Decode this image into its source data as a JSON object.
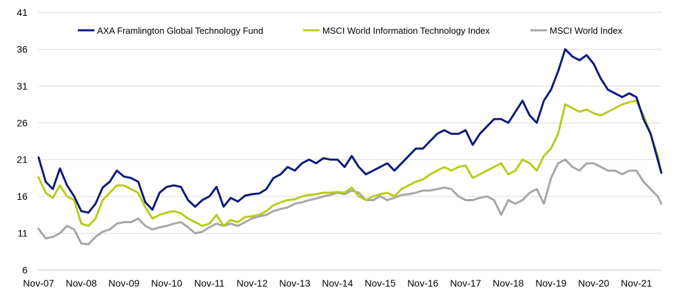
{
  "chart_data": {
    "type": "line",
    "title": "",
    "xlabel": "",
    "ylabel": "",
    "ylim": [
      6,
      41
    ],
    "yticks": [
      6,
      11,
      16,
      21,
      26,
      31,
      36,
      41
    ],
    "xlim": [
      "2007-11",
      "2022-06"
    ],
    "xticks": [
      "Nov-07",
      "Nov-08",
      "Nov-09",
      "Nov-10",
      "Nov-11",
      "Nov-12",
      "Nov-13",
      "Nov-14",
      "Nov-15",
      "Nov-16",
      "Nov-17",
      "Nov-18",
      "Nov-19",
      "Nov-20",
      "Nov-21"
    ],
    "grid": "horizontal",
    "legend_position": "top",
    "series": [
      {
        "name": "AXA Framlington Global Technology Fund",
        "color": "#0d1a7a",
        "points": [
          [
            "2007-11",
            21.3
          ],
          [
            "2008-01",
            18.0
          ],
          [
            "2008-03",
            17.0
          ],
          [
            "2008-05",
            19.8
          ],
          [
            "2008-07",
            17.5
          ],
          [
            "2008-09",
            16.0
          ],
          [
            "2008-11",
            14.0
          ],
          [
            "2009-01",
            13.8
          ],
          [
            "2009-03",
            15.0
          ],
          [
            "2009-05",
            17.2
          ],
          [
            "2009-07",
            18.0
          ],
          [
            "2009-09",
            19.5
          ],
          [
            "2009-11",
            18.7
          ],
          [
            "2010-01",
            18.5
          ],
          [
            "2010-03",
            18.0
          ],
          [
            "2010-05",
            15.2
          ],
          [
            "2010-07",
            14.2
          ],
          [
            "2010-09",
            16.5
          ],
          [
            "2010-11",
            17.3
          ],
          [
            "2011-01",
            17.5
          ],
          [
            "2011-03",
            17.3
          ],
          [
            "2011-05",
            15.5
          ],
          [
            "2011-07",
            14.6
          ],
          [
            "2011-09",
            15.5
          ],
          [
            "2011-11",
            16.0
          ],
          [
            "2012-01",
            17.3
          ],
          [
            "2012-03",
            14.6
          ],
          [
            "2012-05",
            15.8
          ],
          [
            "2012-07",
            15.3
          ],
          [
            "2012-09",
            16.1
          ],
          [
            "2012-11",
            16.3
          ],
          [
            "2013-01",
            16.4
          ],
          [
            "2013-03",
            17.0
          ],
          [
            "2013-05",
            18.5
          ],
          [
            "2013-07",
            19.0
          ],
          [
            "2013-09",
            20.0
          ],
          [
            "2013-11",
            19.5
          ],
          [
            "2014-01",
            20.5
          ],
          [
            "2014-03",
            21.0
          ],
          [
            "2014-05",
            20.5
          ],
          [
            "2014-07",
            21.2
          ],
          [
            "2014-09",
            21.0
          ],
          [
            "2014-11",
            21.0
          ],
          [
            "2015-01",
            20.0
          ],
          [
            "2015-03",
            21.5
          ],
          [
            "2015-05",
            20.0
          ],
          [
            "2015-07",
            19.0
          ],
          [
            "2015-09",
            19.5
          ],
          [
            "2015-11",
            20.0
          ],
          [
            "2016-01",
            20.5
          ],
          [
            "2016-03",
            19.5
          ],
          [
            "2016-05",
            20.5
          ],
          [
            "2016-07",
            21.5
          ],
          [
            "2016-09",
            22.5
          ],
          [
            "2016-11",
            22.5
          ],
          [
            "2017-01",
            23.5
          ],
          [
            "2017-03",
            24.5
          ],
          [
            "2017-05",
            25.0
          ],
          [
            "2017-07",
            24.5
          ],
          [
            "2017-09",
            24.5
          ],
          [
            "2017-11",
            25.0
          ],
          [
            "2018-01",
            23.0
          ],
          [
            "2018-03",
            24.5
          ],
          [
            "2018-05",
            25.5
          ],
          [
            "2018-07",
            26.5
          ],
          [
            "2018-09",
            26.5
          ],
          [
            "2018-11",
            26.0
          ],
          [
            "2019-01",
            27.5
          ],
          [
            "2019-03",
            29.0
          ],
          [
            "2019-05",
            27.0
          ],
          [
            "2019-07",
            26.0
          ],
          [
            "2019-09",
            29.0
          ],
          [
            "2019-11",
            30.5
          ],
          [
            "2020-01",
            33.0
          ],
          [
            "2020-03",
            36.0
          ],
          [
            "2020-05",
            35.0
          ],
          [
            "2020-07",
            34.5
          ],
          [
            "2020-09",
            35.2
          ],
          [
            "2020-11",
            34.0
          ],
          [
            "2021-01",
            32.0
          ],
          [
            "2021-03",
            30.5
          ],
          [
            "2021-05",
            30.0
          ],
          [
            "2021-07",
            29.5
          ],
          [
            "2021-09",
            30.0
          ],
          [
            "2021-11",
            29.5
          ],
          [
            "2022-01",
            26.5
          ],
          [
            "2022-03",
            24.5
          ],
          [
            "2022-05",
            21.0
          ],
          [
            "2022-06",
            19.2
          ]
        ]
      },
      {
        "name": "MSCI World Information Technology Index",
        "color": "#b8cc19",
        "points": [
          [
            "2007-11",
            18.6
          ],
          [
            "2008-01",
            16.5
          ],
          [
            "2008-03",
            15.8
          ],
          [
            "2008-05",
            17.5
          ],
          [
            "2008-07",
            16.0
          ],
          [
            "2008-09",
            15.5
          ],
          [
            "2008-11",
            12.3
          ],
          [
            "2009-01",
            12.0
          ],
          [
            "2009-03",
            13.0
          ],
          [
            "2009-05",
            15.5
          ],
          [
            "2009-07",
            16.5
          ],
          [
            "2009-09",
            17.5
          ],
          [
            "2009-11",
            17.5
          ],
          [
            "2010-01",
            17.0
          ],
          [
            "2010-03",
            16.5
          ],
          [
            "2010-05",
            14.5
          ],
          [
            "2010-07",
            13.0
          ],
          [
            "2010-09",
            13.5
          ],
          [
            "2010-11",
            13.8
          ],
          [
            "2011-01",
            14.0
          ],
          [
            "2011-03",
            13.7
          ],
          [
            "2011-05",
            13.0
          ],
          [
            "2011-07",
            12.5
          ],
          [
            "2011-09",
            12.0
          ],
          [
            "2011-11",
            12.3
          ],
          [
            "2012-01",
            13.5
          ],
          [
            "2012-03",
            12.0
          ],
          [
            "2012-05",
            12.8
          ],
          [
            "2012-07",
            12.5
          ],
          [
            "2012-09",
            13.2
          ],
          [
            "2012-11",
            13.3
          ],
          [
            "2013-01",
            13.5
          ],
          [
            "2013-03",
            14.0
          ],
          [
            "2013-05",
            14.8
          ],
          [
            "2013-07",
            15.2
          ],
          [
            "2013-09",
            15.5
          ],
          [
            "2013-11",
            15.6
          ],
          [
            "2014-01",
            16.0
          ],
          [
            "2014-03",
            16.2
          ],
          [
            "2014-05",
            16.3
          ],
          [
            "2014-07",
            16.5
          ],
          [
            "2014-09",
            16.5
          ],
          [
            "2014-11",
            16.6
          ],
          [
            "2015-01",
            16.5
          ],
          [
            "2015-03",
            17.2
          ],
          [
            "2015-05",
            16.0
          ],
          [
            "2015-07",
            15.5
          ],
          [
            "2015-09",
            16.0
          ],
          [
            "2015-11",
            16.3
          ],
          [
            "2016-01",
            16.5
          ],
          [
            "2016-03",
            16.0
          ],
          [
            "2016-05",
            17.0
          ],
          [
            "2016-07",
            17.5
          ],
          [
            "2016-09",
            18.0
          ],
          [
            "2016-11",
            18.3
          ],
          [
            "2017-01",
            19.0
          ],
          [
            "2017-03",
            19.5
          ],
          [
            "2017-05",
            20.0
          ],
          [
            "2017-07",
            19.5
          ],
          [
            "2017-09",
            20.0
          ],
          [
            "2017-11",
            20.2
          ],
          [
            "2018-01",
            18.5
          ],
          [
            "2018-03",
            19.0
          ],
          [
            "2018-05",
            19.5
          ],
          [
            "2018-07",
            20.0
          ],
          [
            "2018-09",
            20.5
          ],
          [
            "2018-11",
            19.0
          ],
          [
            "2019-01",
            19.5
          ],
          [
            "2019-03",
            21.0
          ],
          [
            "2019-05",
            20.5
          ],
          [
            "2019-07",
            19.5
          ],
          [
            "2019-09",
            21.5
          ],
          [
            "2019-11",
            22.5
          ],
          [
            "2020-01",
            24.5
          ],
          [
            "2020-03",
            28.5
          ],
          [
            "2020-05",
            28.0
          ],
          [
            "2020-07",
            27.5
          ],
          [
            "2020-09",
            27.8
          ],
          [
            "2020-11",
            27.3
          ],
          [
            "2021-01",
            27.0
          ],
          [
            "2021-03",
            27.5
          ],
          [
            "2021-05",
            28.0
          ],
          [
            "2021-07",
            28.5
          ],
          [
            "2021-09",
            28.8
          ],
          [
            "2021-11",
            29.0
          ],
          [
            "2022-01",
            27.0
          ],
          [
            "2022-03",
            24.5
          ],
          [
            "2022-05",
            21.5
          ],
          [
            "2022-06",
            19.3
          ]
        ]
      },
      {
        "name": "MSCI World Index",
        "color": "#a6a6a6",
        "points": [
          [
            "2007-11",
            11.6
          ],
          [
            "2008-01",
            10.3
          ],
          [
            "2008-03",
            10.5
          ],
          [
            "2008-05",
            11.0
          ],
          [
            "2008-07",
            12.0
          ],
          [
            "2008-09",
            11.5
          ],
          [
            "2008-11",
            9.6
          ],
          [
            "2009-01",
            9.5
          ],
          [
            "2009-03",
            10.5
          ],
          [
            "2009-05",
            11.2
          ],
          [
            "2009-07",
            11.5
          ],
          [
            "2009-09",
            12.3
          ],
          [
            "2009-11",
            12.5
          ],
          [
            "2010-01",
            12.5
          ],
          [
            "2010-03",
            13.0
          ],
          [
            "2010-05",
            12.0
          ],
          [
            "2010-07",
            11.5
          ],
          [
            "2010-09",
            11.8
          ],
          [
            "2010-11",
            12.0
          ],
          [
            "2011-01",
            12.3
          ],
          [
            "2011-03",
            12.5
          ],
          [
            "2011-05",
            11.8
          ],
          [
            "2011-07",
            11.0
          ],
          [
            "2011-09",
            11.2
          ],
          [
            "2011-11",
            11.8
          ],
          [
            "2012-01",
            12.3
          ],
          [
            "2012-03",
            12.0
          ],
          [
            "2012-05",
            12.3
          ],
          [
            "2012-07",
            12.0
          ],
          [
            "2012-09",
            12.5
          ],
          [
            "2012-11",
            13.0
          ],
          [
            "2013-01",
            13.3
          ],
          [
            "2013-03",
            13.5
          ],
          [
            "2013-05",
            14.0
          ],
          [
            "2013-07",
            14.3
          ],
          [
            "2013-09",
            14.5
          ],
          [
            "2013-11",
            15.0
          ],
          [
            "2014-01",
            15.2
          ],
          [
            "2014-03",
            15.5
          ],
          [
            "2014-05",
            15.7
          ],
          [
            "2014-07",
            16.0
          ],
          [
            "2014-09",
            16.2
          ],
          [
            "2014-11",
            16.5
          ],
          [
            "2015-01",
            16.3
          ],
          [
            "2015-03",
            16.8
          ],
          [
            "2015-05",
            16.5
          ],
          [
            "2015-07",
            15.5
          ],
          [
            "2015-09",
            15.5
          ],
          [
            "2015-11",
            16.0
          ],
          [
            "2016-01",
            15.5
          ],
          [
            "2016-03",
            15.8
          ],
          [
            "2016-05",
            16.2
          ],
          [
            "2016-07",
            16.3
          ],
          [
            "2016-09",
            16.5
          ],
          [
            "2016-11",
            16.8
          ],
          [
            "2017-01",
            16.8
          ],
          [
            "2017-03",
            17.0
          ],
          [
            "2017-05",
            17.2
          ],
          [
            "2017-07",
            17.0
          ],
          [
            "2017-09",
            16.0
          ],
          [
            "2017-11",
            15.5
          ],
          [
            "2018-01",
            15.5
          ],
          [
            "2018-03",
            15.8
          ],
          [
            "2018-05",
            16.0
          ],
          [
            "2018-07",
            15.5
          ],
          [
            "2018-09",
            13.5
          ],
          [
            "2018-11",
            15.5
          ],
          [
            "2019-01",
            15.0
          ],
          [
            "2019-03",
            15.5
          ],
          [
            "2019-05",
            16.5
          ],
          [
            "2019-07",
            17.0
          ],
          [
            "2019-09",
            15.0
          ],
          [
            "2019-11",
            18.5
          ],
          [
            "2020-01",
            20.5
          ],
          [
            "2020-03",
            21.0
          ],
          [
            "2020-05",
            20.0
          ],
          [
            "2020-07",
            19.5
          ],
          [
            "2020-09",
            20.5
          ],
          [
            "2020-11",
            20.5
          ],
          [
            "2021-01",
            20.0
          ],
          [
            "2021-03",
            19.5
          ],
          [
            "2021-05",
            19.5
          ],
          [
            "2021-07",
            19.0
          ],
          [
            "2021-09",
            19.5
          ],
          [
            "2021-11",
            19.5
          ],
          [
            "2022-01",
            18.0
          ],
          [
            "2022-03",
            17.0
          ],
          [
            "2022-05",
            16.0
          ],
          [
            "2022-06",
            15.0
          ]
        ]
      }
    ]
  }
}
